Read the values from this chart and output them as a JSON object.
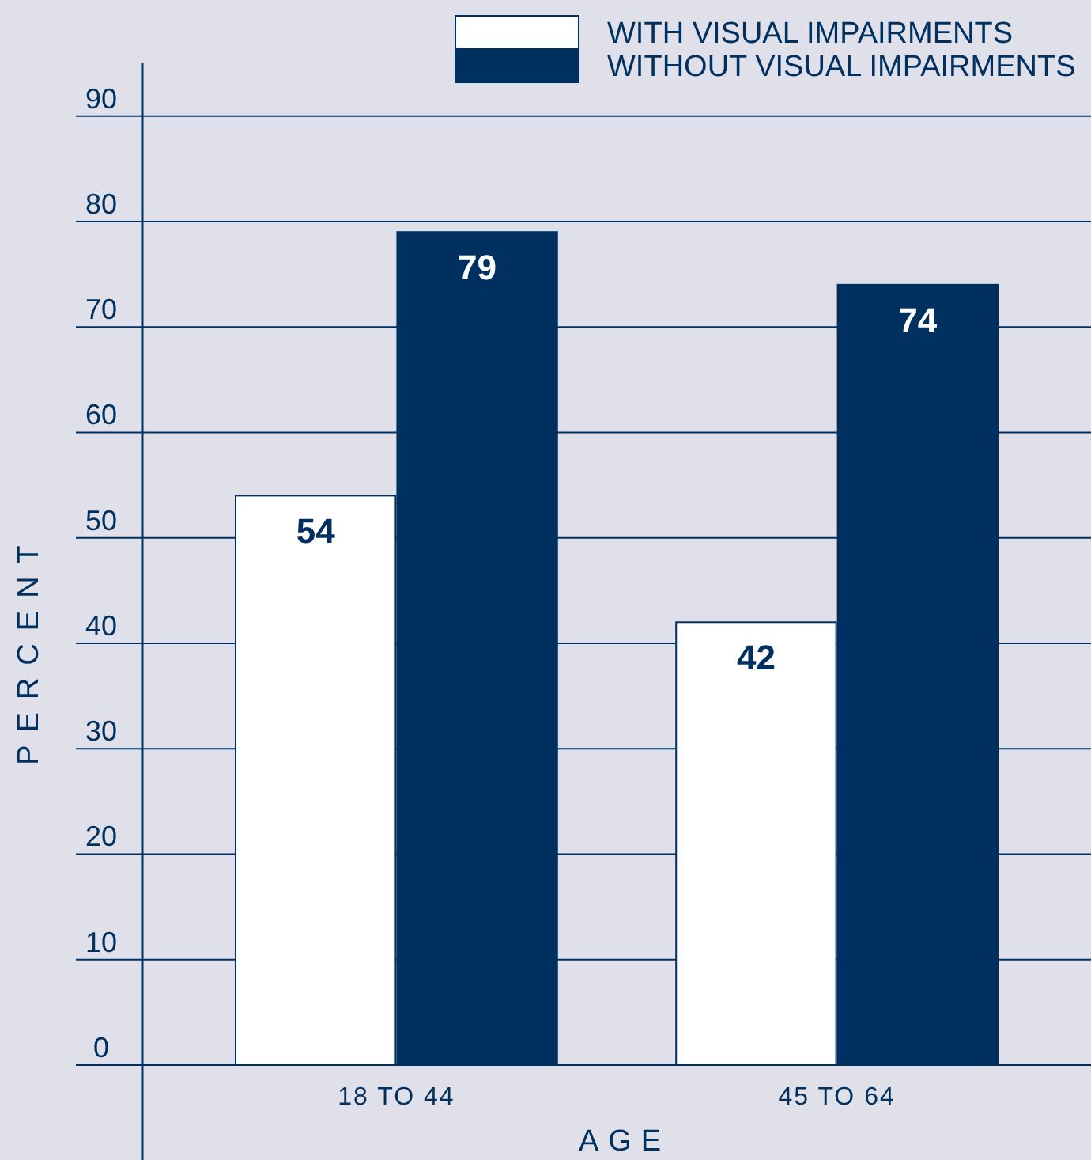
{
  "chart_data": {
    "type": "bar",
    "categories": [
      "18 TO 44",
      "45 TO 64"
    ],
    "series": [
      {
        "name": "WITH VISUAL IMPAIRMENTS",
        "color": "#ffffff",
        "values": [
          54,
          42
        ]
      },
      {
        "name": "WITHOUT VISUAL IMPAIRMENTS",
        "color": "#00305f",
        "values": [
          79,
          74
        ]
      }
    ],
    "ylabel": "PERCENT",
    "xlabel": "AGE",
    "ylim": [
      0,
      95
    ],
    "yticks": [
      0,
      10,
      20,
      30,
      40,
      50,
      60,
      70,
      80,
      90
    ],
    "grid": "y",
    "legend": "top right",
    "data_labels": true
  }
}
